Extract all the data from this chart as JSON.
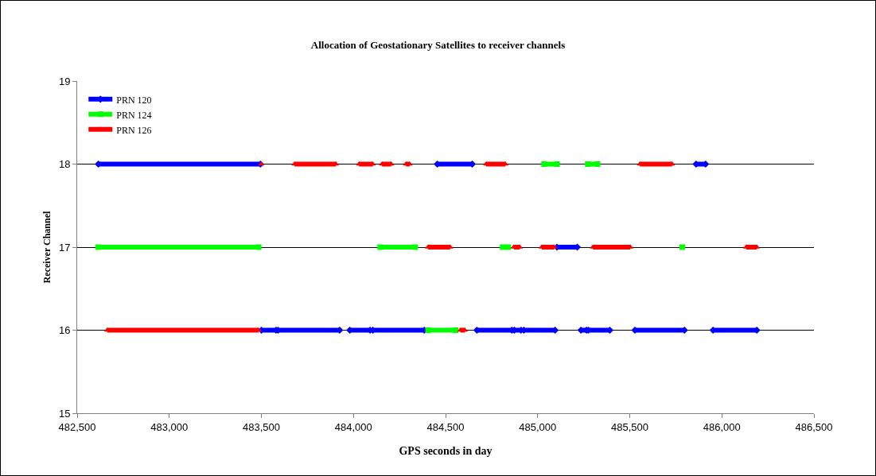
{
  "chart_data": {
    "type": "line",
    "title": "Allocation of Geostationary Satellites to receiver channels",
    "xlabel": "GPS seconds in day",
    "ylabel": "Receiver Channel",
    "xlim": [
      482500,
      486500
    ],
    "xticks": [
      {
        "value": 482500,
        "label": "482,500"
      },
      {
        "value": 483000,
        "label": "483,000"
      },
      {
        "value": 483500,
        "label": "483,500"
      },
      {
        "value": 484000,
        "label": "484,000"
      },
      {
        "value": 484500,
        "label": "484,500"
      },
      {
        "value": 485000,
        "label": "485,000"
      },
      {
        "value": 485500,
        "label": "485,500"
      },
      {
        "value": 486000,
        "label": "486,000"
      },
      {
        "value": 486500,
        "label": "486,500"
      }
    ],
    "ylim": [
      15,
      19
    ],
    "yticks": [
      15,
      16,
      17,
      18,
      19
    ],
    "grid": "y",
    "legend": "top left",
    "series": [
      {
        "name": "PRN 120",
        "color": "#0000ff",
        "marker": "diamond",
        "x": [
          482615,
          483495,
          null,
          484455,
          484645,
          null,
          485860,
          485912,
          null,
          485105,
          485215,
          null,
          483500,
          483580,
          null,
          483590,
          483925,
          null,
          483980,
          484090,
          null,
          484105,
          484385,
          null,
          484670,
          484860,
          null,
          484873,
          484910,
          null,
          484925,
          485095,
          null,
          485235,
          485265,
          null,
          485275,
          485392,
          null,
          485528,
          485797,
          null,
          485952,
          486190
        ],
        "values": [
          18,
          18,
          null,
          18,
          18,
          null,
          18,
          18,
          null,
          17,
          17,
          null,
          16,
          16,
          null,
          16,
          16,
          null,
          16,
          16,
          null,
          16,
          16,
          null,
          16,
          16,
          null,
          16,
          16,
          null,
          16,
          16,
          null,
          16,
          16,
          null,
          16,
          16,
          null,
          16,
          16,
          null,
          16,
          16
        ]
      },
      {
        "name": "PRN 124",
        "color": "#00ff00",
        "marker": "square",
        "x": [
          485035,
          485105,
          null,
          485272,
          485325,
          null,
          482615,
          483485,
          null,
          484145,
          484335,
          null,
          484810,
          484840,
          null,
          485785,
          null,
          484405,
          484555
        ],
        "values": [
          18,
          18,
          null,
          18,
          18,
          null,
          17,
          17,
          null,
          17,
          17,
          null,
          17,
          17,
          null,
          17,
          null,
          16,
          16
        ]
      },
      {
        "name": "PRN 126",
        "color": "#ff0000",
        "marker": "triangle",
        "x": [
          483500,
          null,
          483680,
          483905,
          null,
          484030,
          484105,
          null,
          484155,
          484205,
          null,
          484285,
          484305,
          null,
          484720,
          484825,
          null,
          485555,
          485730,
          null,
          484405,
          484525,
          null,
          484870,
          484903,
          null,
          485022,
          485090,
          null,
          485300,
          485503,
          null,
          486132,
          486190,
          null,
          482663,
          483485,
          null,
          484580,
          484605
        ],
        "values": [
          18,
          null,
          18,
          18,
          null,
          18,
          18,
          null,
          18,
          18,
          null,
          18,
          18,
          null,
          18,
          18,
          null,
          18,
          18,
          null,
          17,
          17,
          null,
          17,
          17,
          null,
          17,
          17,
          null,
          17,
          17,
          null,
          17,
          17,
          null,
          16,
          16,
          null,
          16,
          16
        ]
      }
    ]
  }
}
